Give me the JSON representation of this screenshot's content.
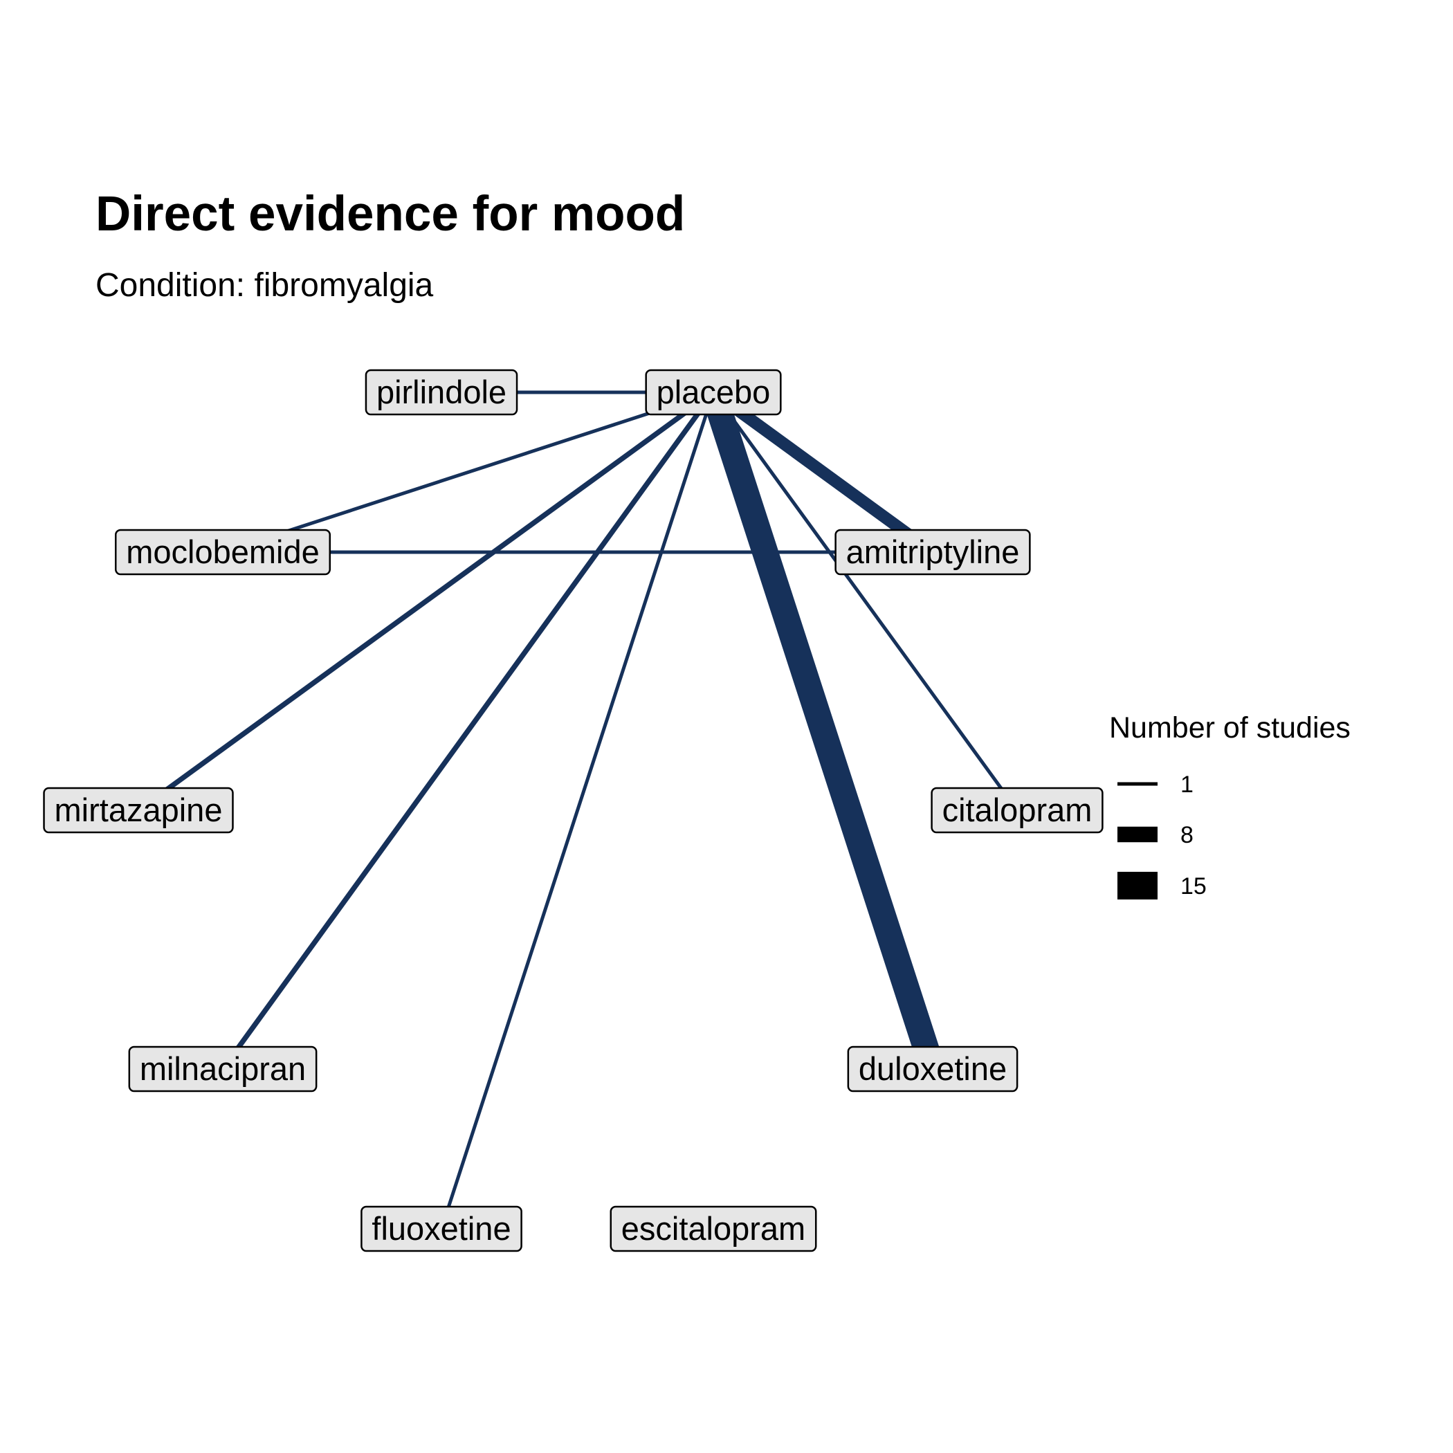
{
  "title": "Direct evidence for mood",
  "subtitle": "Condition: fibromyalgia",
  "colors": {
    "edge": "#16315a",
    "node_fill": "#e6e6e6",
    "node_border": "#000000",
    "legend_key": "#000000"
  },
  "nodes": [
    {
      "id": "placebo",
      "label": "placebo"
    },
    {
      "id": "pirlindole",
      "label": "pirlindole"
    },
    {
      "id": "moclobemide",
      "label": "moclobemide"
    },
    {
      "id": "amitriptyline",
      "label": "amitriptyline"
    },
    {
      "id": "mirtazapine",
      "label": "mirtazapine"
    },
    {
      "id": "citalopram",
      "label": "citalopram"
    },
    {
      "id": "milnacipran",
      "label": "milnacipran"
    },
    {
      "id": "duloxetine",
      "label": "duloxetine"
    },
    {
      "id": "fluoxetine",
      "label": "fluoxetine"
    },
    {
      "id": "escitalopram",
      "label": "escitalopram"
    }
  ],
  "edges": [
    {
      "from": "placebo",
      "to": "pirlindole",
      "studies": 1
    },
    {
      "from": "placebo",
      "to": "moclobemide",
      "studies": 1
    },
    {
      "from": "placebo",
      "to": "mirtazapine",
      "studies": 2
    },
    {
      "from": "placebo",
      "to": "milnacipran",
      "studies": 2
    },
    {
      "from": "placebo",
      "to": "fluoxetine",
      "studies": 1
    },
    {
      "from": "placebo",
      "to": "duloxetine",
      "studies": 14
    },
    {
      "from": "placebo",
      "to": "amitriptyline",
      "studies": 6
    },
    {
      "from": "placebo",
      "to": "citalopram",
      "studies": 1
    },
    {
      "from": "moclobemide",
      "to": "amitriptyline",
      "studies": 1
    }
  ],
  "legend": {
    "title": "Number of studies",
    "items": [
      {
        "label": "1",
        "value": 1
      },
      {
        "label": "8",
        "value": 8
      },
      {
        "label": "15",
        "value": 15
      }
    ]
  }
}
